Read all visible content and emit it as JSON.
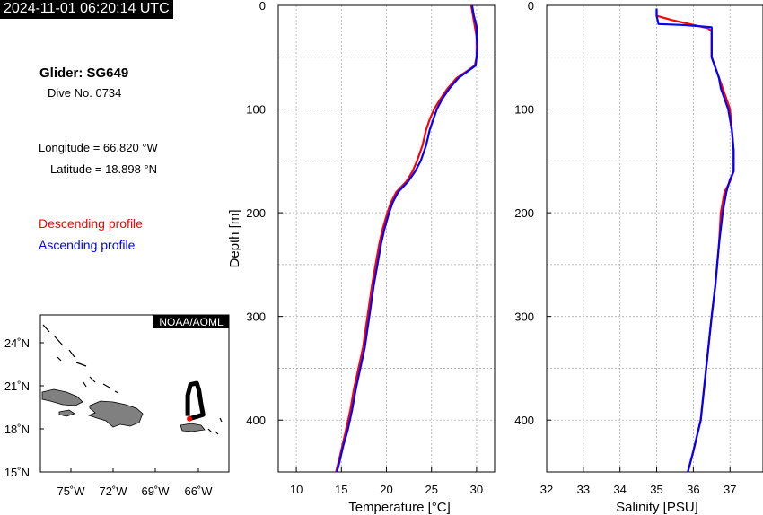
{
  "timestamp": "2024-11-01 06:20:14 UTC",
  "glider": {
    "name": "Glider: SG649",
    "dive": "Dive No. 0734"
  },
  "position": {
    "longitude": "Longitude = 66.820 °W",
    "latitude": "Latitude = 18.898 °N"
  },
  "legend": {
    "descending": "Descending profile",
    "ascending": "Ascending profile",
    "descending_color": "#ff0000",
    "ascending_color": "#0000ff"
  },
  "map": {
    "credit": "NOAA/AOML",
    "lat_labels": [
      "24˚N",
      "21˚N",
      "18˚N",
      "15˚N"
    ],
    "lon_labels": [
      "75˚W",
      "72˚W",
      "69˚W",
      "66˚W"
    ],
    "lat_range": [
      15,
      26.5
    ],
    "lon_range": [
      -77.5,
      -64
    ],
    "track": [
      [
        -66.95,
        19.1
      ],
      [
        -66.95,
        20.6
      ],
      [
        -66.75,
        21.4
      ],
      [
        -66.3,
        21.5
      ],
      [
        -66.15,
        21.0
      ],
      [
        -66.0,
        20.0
      ],
      [
        -65.85,
        19.2
      ],
      [
        -66.3,
        19.05
      ],
      [
        -66.82,
        18.9
      ]
    ],
    "current_position": [
      -66.82,
      18.9
    ],
    "land_color": "#808080",
    "track_color": "#000000",
    "position_color": "#ff0000"
  },
  "chart_data": [
    {
      "type": "line",
      "xlabel": "Temperature [°C]",
      "ylabel": "Depth [m]",
      "xlim": [
        8,
        32
      ],
      "ylim": [
        450,
        0
      ],
      "xticks": [
        "10",
        "15",
        "20",
        "25",
        "30"
      ],
      "yticks": [
        "0",
        "100",
        "200",
        "300",
        "400"
      ],
      "grid": true,
      "series": [
        {
          "name": "Descending profile",
          "color": "#ff0000",
          "points": [
            [
              29.4,
              0
            ],
            [
              29.6,
              10
            ],
            [
              29.8,
              20
            ],
            [
              30.0,
              30
            ],
            [
              30.0,
              40
            ],
            [
              30.0,
              50
            ],
            [
              29.8,
              58
            ],
            [
              29.0,
              63
            ],
            [
              27.8,
              70
            ],
            [
              26.8,
              80
            ],
            [
              26.0,
              90
            ],
            [
              25.3,
              100
            ],
            [
              24.8,
              110
            ],
            [
              24.4,
              120
            ],
            [
              24.0,
              135
            ],
            [
              23.4,
              150
            ],
            [
              22.9,
              160
            ],
            [
              22.2,
              170
            ],
            [
              21.1,
              180
            ],
            [
              20.5,
              190
            ],
            [
              20.1,
              200
            ],
            [
              19.6,
              215
            ],
            [
              19.2,
              230
            ],
            [
              18.8,
              250
            ],
            [
              18.4,
              270
            ],
            [
              17.9,
              300
            ],
            [
              17.4,
              330
            ],
            [
              16.9,
              350
            ],
            [
              16.4,
              370
            ],
            [
              16.0,
              390
            ],
            [
              15.5,
              410
            ],
            [
              15.1,
              425
            ],
            [
              14.7,
              440
            ],
            [
              14.4,
              450
            ]
          ]
        },
        {
          "name": "Ascending profile",
          "color": "#0000ff",
          "points": [
            [
              29.5,
              0
            ],
            [
              29.7,
              10
            ],
            [
              30.0,
              20
            ],
            [
              30.0,
              30
            ],
            [
              30.1,
              40
            ],
            [
              30.0,
              50
            ],
            [
              29.9,
              58
            ],
            [
              29.1,
              63
            ],
            [
              28.0,
              70
            ],
            [
              27.0,
              80
            ],
            [
              26.2,
              90
            ],
            [
              25.6,
              100
            ],
            [
              25.2,
              110
            ],
            [
              24.8,
              120
            ],
            [
              24.4,
              135
            ],
            [
              23.8,
              150
            ],
            [
              23.2,
              160
            ],
            [
              22.4,
              170
            ],
            [
              21.3,
              180
            ],
            [
              20.7,
              190
            ],
            [
              20.3,
              200
            ],
            [
              19.8,
              215
            ],
            [
              19.4,
              230
            ],
            [
              19.0,
              250
            ],
            [
              18.6,
              270
            ],
            [
              18.1,
              300
            ],
            [
              17.6,
              330
            ],
            [
              17.1,
              350
            ],
            [
              16.6,
              370
            ],
            [
              16.2,
              390
            ],
            [
              15.7,
              410
            ],
            [
              15.2,
              425
            ],
            [
              14.8,
              440
            ],
            [
              14.5,
              450
            ]
          ]
        }
      ]
    },
    {
      "type": "line",
      "xlabel": "Salinity [PSU]",
      "ylabel": "",
      "xlim": [
        32,
        37.9
      ],
      "ylim": [
        450,
        0
      ],
      "xticks": [
        "32",
        "33",
        "34",
        "35",
        "36",
        "37"
      ],
      "yticks": [
        "0",
        "100",
        "200",
        "300",
        "400"
      ],
      "grid": true,
      "series": [
        {
          "name": "Descending profile",
          "color": "#ff0000",
          "points": [
            [
              35.0,
              5
            ],
            [
              35.0,
              10
            ],
            [
              35.4,
              14
            ],
            [
              35.9,
              18
            ],
            [
              36.4,
              22
            ],
            [
              36.5,
              25
            ],
            [
              36.5,
              40
            ],
            [
              36.5,
              50
            ],
            [
              36.6,
              60
            ],
            [
              36.7,
              70
            ],
            [
              36.8,
              80
            ],
            [
              36.9,
              90
            ],
            [
              37.0,
              100
            ],
            [
              37.05,
              120
            ],
            [
              37.1,
              140
            ],
            [
              37.1,
              160
            ],
            [
              37.0,
              170
            ],
            [
              36.85,
              180
            ],
            [
              36.8,
              190
            ],
            [
              36.75,
              200
            ],
            [
              36.7,
              230
            ],
            [
              36.6,
              270
            ],
            [
              36.5,
              300
            ],
            [
              36.35,
              350
            ],
            [
              36.2,
              400
            ],
            [
              36.0,
              430
            ],
            [
              35.85,
              450
            ]
          ]
        },
        {
          "name": "Ascending profile",
          "color": "#0000ff",
          "points": [
            [
              35.0,
              3
            ],
            [
              35.0,
              10
            ],
            [
              35.05,
              18
            ],
            [
              35.8,
              19
            ],
            [
              36.5,
              21
            ],
            [
              36.5,
              25
            ],
            [
              36.5,
              40
            ],
            [
              36.5,
              50
            ],
            [
              36.6,
              60
            ],
            [
              36.7,
              70
            ],
            [
              36.75,
              80
            ],
            [
              36.85,
              90
            ],
            [
              36.95,
              100
            ],
            [
              37.05,
              120
            ],
            [
              37.1,
              140
            ],
            [
              37.1,
              160
            ],
            [
              37.0,
              168
            ],
            [
              36.9,
              180
            ],
            [
              36.85,
              190
            ],
            [
              36.8,
              200
            ],
            [
              36.7,
              230
            ],
            [
              36.6,
              270
            ],
            [
              36.5,
              300
            ],
            [
              36.35,
              350
            ],
            [
              36.2,
              400
            ],
            [
              36.0,
              430
            ],
            [
              35.85,
              450
            ]
          ]
        }
      ]
    }
  ]
}
